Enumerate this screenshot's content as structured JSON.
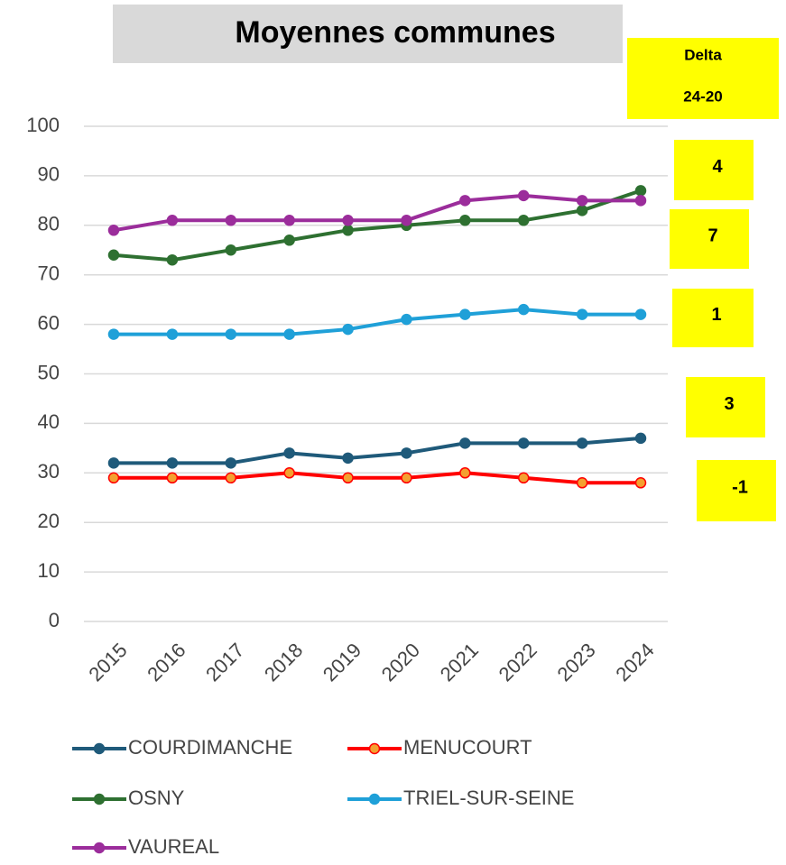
{
  "chart_data": {
    "type": "line",
    "title": "Moyennes communes",
    "categories": [
      "2015",
      "2016",
      "2017",
      "2018",
      "2019",
      "2020",
      "2021",
      "2022",
      "2023",
      "2024"
    ],
    "series": [
      {
        "name": "COURDIMANCHE",
        "color": "#1f5a7a",
        "marker_fill": "#1f5a7a",
        "values": [
          32,
          32,
          32,
          34,
          33,
          34,
          36,
          36,
          36,
          37
        ]
      },
      {
        "name": "MENUCOURT",
        "color": "#ff0000",
        "marker_fill": "#f4a030",
        "values": [
          29,
          29,
          29,
          30,
          29,
          29,
          30,
          29,
          28,
          28
        ]
      },
      {
        "name": "OSNY",
        "color": "#2e7031",
        "marker_fill": "#2e7031",
        "values": [
          74,
          73,
          75,
          77,
          79,
          80,
          81,
          81,
          83,
          87
        ]
      },
      {
        "name": "TRIEL-SUR-SEINE",
        "color": "#1fa0d8",
        "marker_fill": "#1fa0d8",
        "values": [
          58,
          58,
          58,
          58,
          59,
          61,
          62,
          63,
          62,
          62
        ]
      },
      {
        "name": "VAUREAL",
        "color": "#9b2d9b",
        "marker_fill": "#9b2d9b",
        "values": [
          79,
          81,
          81,
          81,
          81,
          81,
          85,
          86,
          85,
          85
        ]
      }
    ],
    "ylim": [
      0,
      100
    ],
    "yticks": [
      0,
      10,
      20,
      30,
      40,
      50,
      60,
      70,
      80,
      90,
      100
    ],
    "grid": true,
    "delta": {
      "title": "Delta",
      "subtitle": "24-20",
      "values": [
        4,
        7,
        1,
        3,
        -1
      ],
      "color": "#ffff00"
    }
  }
}
